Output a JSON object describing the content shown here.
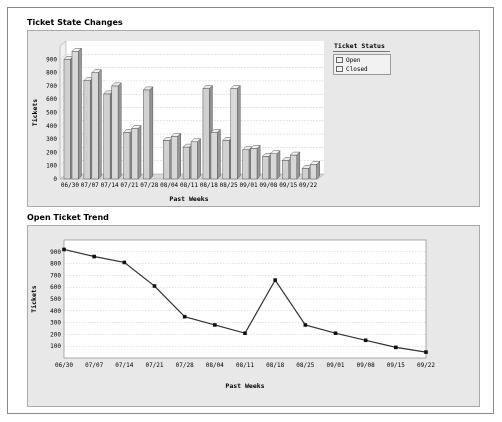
{
  "chart_data": [
    {
      "type": "bar",
      "title": "Ticket State Changes",
      "xlabel": "Past Weeks",
      "ylabel": "Tickets",
      "ylim": [
        0,
        1000
      ],
      "yticks": [
        0,
        100,
        200,
        300,
        400,
        500,
        600,
        700,
        800,
        900
      ],
      "categories": [
        "06/30",
        "07/07",
        "07/14",
        "07/21",
        "07/28",
        "08/04",
        "08/11",
        "08/18",
        "08/25",
        "09/01",
        "09/08",
        "09/15",
        "09/22"
      ],
      "legend_title": "Ticket Status",
      "legend_position": "right",
      "grid": true,
      "style": "3d",
      "series": [
        {
          "name": "Open",
          "color": "#d0d0d0",
          "values": [
            900,
            740,
            640,
            350,
            670,
            290,
            240,
            680,
            290,
            220,
            170,
            140,
            80
          ]
        },
        {
          "name": "Closed",
          "color": "#d8d8d8",
          "values": [
            960,
            800,
            700,
            380,
            0,
            320,
            280,
            350,
            680,
            230,
            190,
            180,
            110
          ]
        }
      ]
    },
    {
      "type": "line",
      "title": "Open Ticket Trend",
      "xlabel": "Past Weeks",
      "ylabel": "Tickets",
      "ylim": [
        0,
        1000
      ],
      "yticks": [
        100,
        200,
        300,
        400,
        500,
        600,
        700,
        800,
        900
      ],
      "grid": true,
      "categories": [
        "06/30",
        "07/07",
        "07/14",
        "07/21",
        "07/28",
        "08/04",
        "08/11",
        "08/18",
        "08/25",
        "09/01",
        "09/08",
        "09/15",
        "09/22"
      ],
      "series": [
        {
          "color": "#333333",
          "values": [
            920,
            860,
            810,
            610,
            350,
            280,
            210,
            660,
            280,
            210,
            150,
            90,
            50
          ]
        }
      ]
    }
  ]
}
